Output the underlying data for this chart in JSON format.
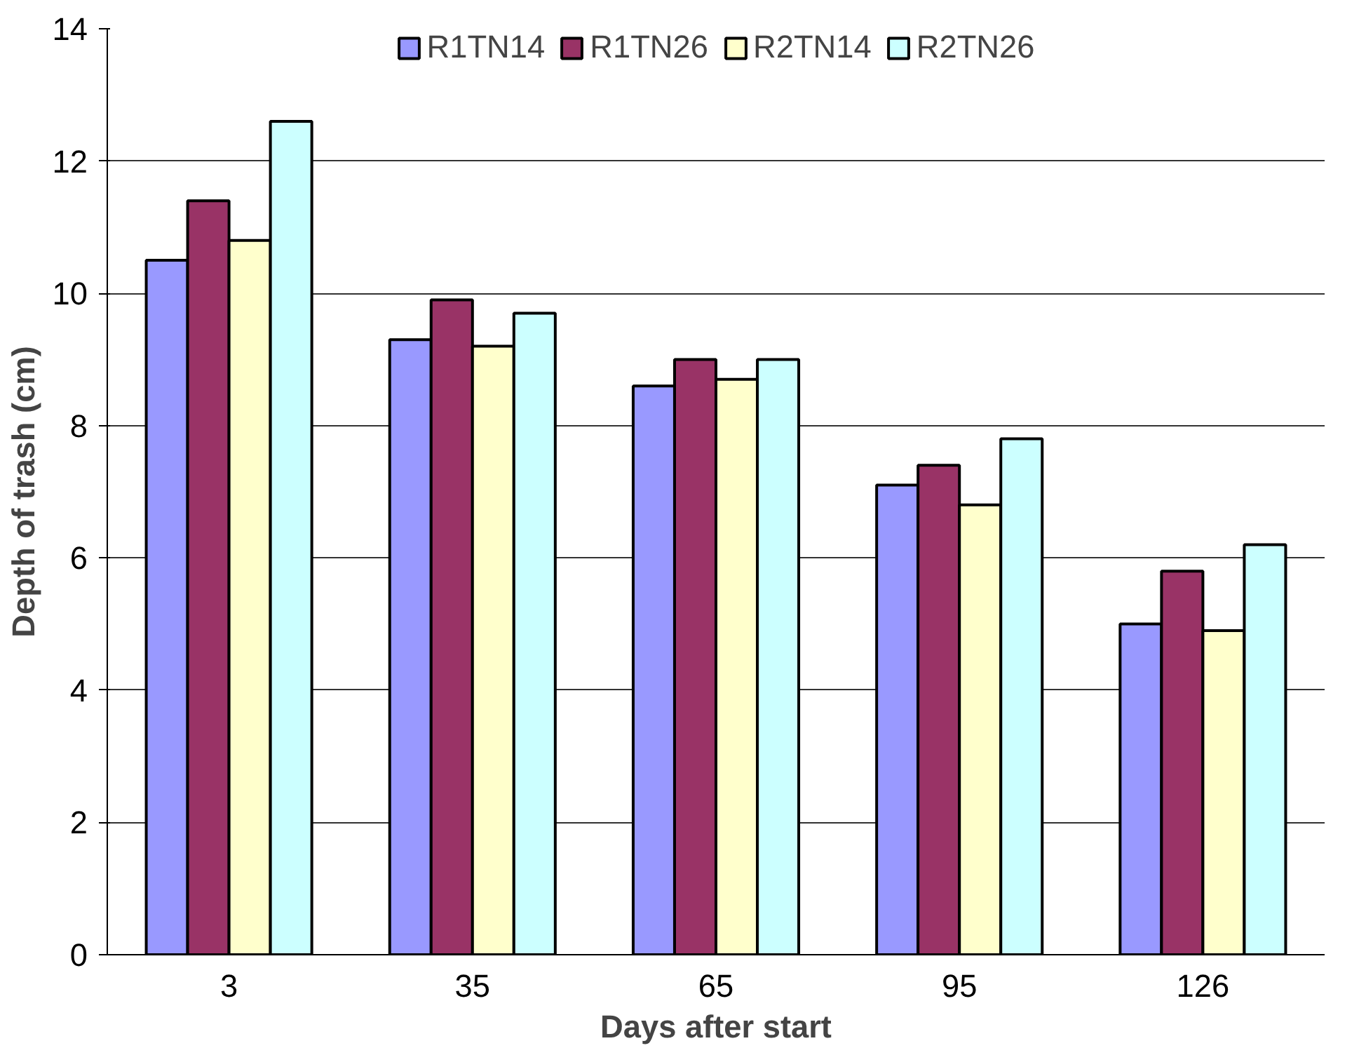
{
  "chart_data": {
    "type": "bar",
    "xlabel": "Days after start",
    "ylabel": "Depth of trash (cm)",
    "categories": [
      "3",
      "35",
      "65",
      "95",
      "126"
    ],
    "series": [
      {
        "name": "R1TN14",
        "color": "#9999ff",
        "values": [
          10.5,
          9.3,
          8.6,
          7.1,
          5.0
        ]
      },
      {
        "name": "R1TN26",
        "color": "#993366",
        "values": [
          11.4,
          9.9,
          9.0,
          7.4,
          5.8
        ]
      },
      {
        "name": "R2TN14",
        "color": "#ffffcc",
        "values": [
          10.8,
          9.2,
          8.7,
          6.8,
          4.9
        ]
      },
      {
        "name": "R2TN26",
        "color": "#ccffff",
        "values": [
          12.6,
          9.7,
          9.0,
          7.8,
          6.2
        ]
      }
    ],
    "ylim": [
      0,
      14
    ],
    "yticks": [
      0,
      2,
      4,
      6,
      8,
      10,
      12,
      14
    ],
    "grid": "y",
    "legend": "top"
  }
}
